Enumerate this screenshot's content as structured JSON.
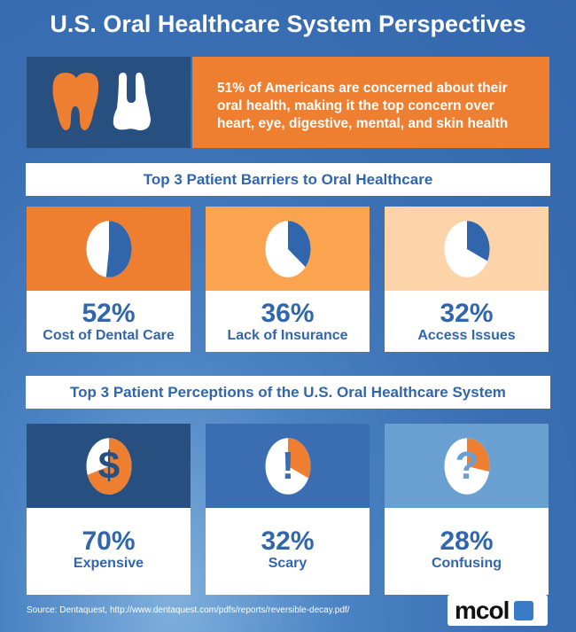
{
  "title": "U.S. Oral Healthcare System Perspectives",
  "intro": "51% of Americans are concerned about their oral health, making it the top concern over heart, eye, digestive, mental, and skin health",
  "sections": [
    {
      "heading": "Top 3 Patient Barriers to Oral Healthcare"
    },
    {
      "heading": "Top 3 Patient Perceptions of the U.S. Oral Healthcare System"
    }
  ],
  "chart_data": [
    {
      "type": "pie",
      "title": "Top 3 Patient Barriers to Oral Healthcare",
      "categories": [
        "Cost of Dental Care",
        "Lack of Insurance",
        "Access Issues"
      ],
      "values": [
        52,
        36,
        32
      ],
      "labels": [
        "52%",
        "36%",
        "32%"
      ],
      "slice_color": "#3166ad"
    },
    {
      "type": "pie",
      "title": "Top 3 Patient Perceptions of the U.S. Oral Healthcare System",
      "categories": [
        "Expensive",
        "Scary",
        "Confusing"
      ],
      "values": [
        70,
        32,
        28
      ],
      "labels": [
        "70%",
        "32%",
        "28%"
      ],
      "slice_color": "#ee7f31",
      "icons": [
        "dollar-icon",
        "exclamation-icon",
        "question-icon"
      ],
      "glyphs": [
        "$",
        "!",
        "?"
      ]
    }
  ],
  "colors": {
    "orange": "#ee7f31",
    "light_orange": "#fba44f",
    "peach": "#fdd3a9",
    "navy": "#274f80",
    "blue": "#3a6db2",
    "light_blue": "#6a9fd2"
  },
  "source": "Source:  Dentaquest, http://www.dentaquest.com/pdfs/reports/reversible-decay.pdf/",
  "logo": "mcol"
}
